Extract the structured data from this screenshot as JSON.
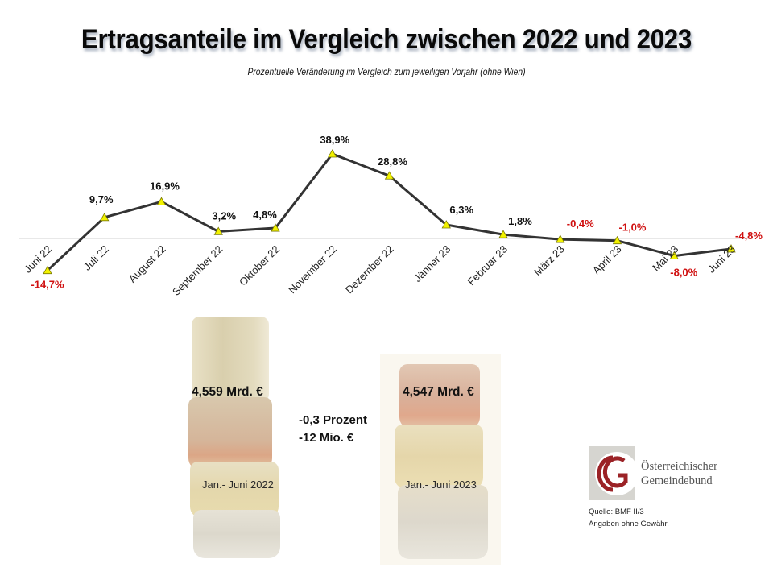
{
  "slide": {
    "title": "Ertragsanteile im Vergleich zwischen 2022 und 2023",
    "subtitle": "Prozentuelle Veränderung im Vergleich zum jeweiligen Vorjahr (ohne Wien)"
  },
  "chart_data": {
    "type": "line",
    "title": "Ertragsanteile im Vergleich zwischen 2022 und 2023",
    "subtitle": "Prozentuelle Veränderung im Vergleich zum jeweiligen Vorjahr (ohne Wien)",
    "xlabel": "",
    "ylabel": "",
    "categories": [
      "Juni 22",
      "Juli 22",
      "August 22",
      "September  22",
      "Oktober  22",
      "November 22",
      "Dezember 22",
      "Jänner 23",
      "Februar 23",
      "März 23",
      "April 23",
      "Mai 23",
      "Juni 23"
    ],
    "series": [
      {
        "name": "Veränderung zum Vorjahr (%)",
        "values": [
          -14.7,
          9.7,
          16.9,
          3.2,
          4.8,
          38.9,
          28.8,
          6.3,
          1.8,
          -0.4,
          -1.0,
          -8.0,
          -4.8
        ],
        "labels": [
          "-14,7%",
          "9,7%",
          "16,9%",
          "3,2%",
          "4,8%",
          "38,9%",
          "28,8%",
          "6,3%",
          "1,8%",
          "-0,4%",
          "-1,0%",
          "-8,0%",
          "-4,8%"
        ],
        "line_color": "#333333",
        "marker": "triangle",
        "marker_color": "#f2f200"
      }
    ],
    "positive_label_color": "#111111",
    "negative_label_color": "#d01010",
    "zero_line": true,
    "grid": false,
    "ylim": [
      -16,
      42
    ],
    "legend": "none"
  },
  "comparison": {
    "left": {
      "amount": "4,559 Mrd. €",
      "period": "Jan.- Juni 2022"
    },
    "right": {
      "amount": "4,547 Mrd. €",
      "period": "Jan.- Juni 2023"
    },
    "change_percent": "-0,3 Prozent",
    "change_amount": "-12 Mio. €"
  },
  "logo": {
    "line1": "Österreichischer",
    "line2": "Gemeindebund",
    "accent_color": "#9b2226"
  },
  "footer": {
    "source": "Quelle: BMF II/3",
    "disclaimer": "Angaben ohne Gewähr."
  }
}
